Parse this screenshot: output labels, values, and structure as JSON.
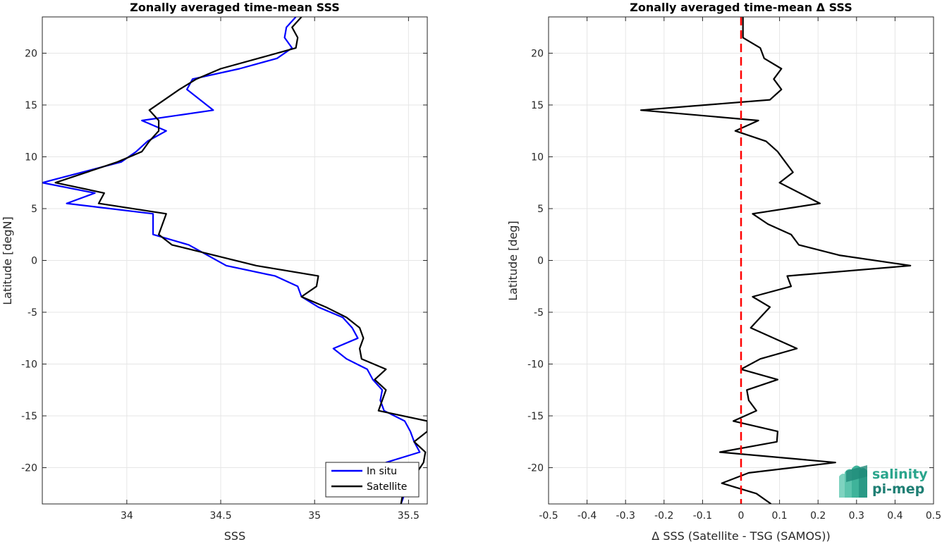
{
  "chart_data": [
    {
      "type": "line",
      "title": "Zonally averaged time-mean SSS",
      "xlabel": "SSS",
      "ylabel": "Latitude [degN]",
      "xlim": [
        33.55,
        35.6
      ],
      "ylim": [
        -23.5,
        23.5
      ],
      "xticks": [
        34,
        34.5,
        35,
        35.5
      ],
      "xtick_labels": [
        "34",
        "34.5",
        "35",
        "35.5"
      ],
      "yticks": [
        -20,
        -15,
        -10,
        -5,
        0,
        5,
        10,
        15,
        20
      ],
      "ytick_labels": [
        "-20",
        "-15",
        "-10",
        "-5",
        "0",
        "5",
        "10",
        "15",
        "20"
      ],
      "grid": true,
      "legend_position": "bottom-right",
      "series": [
        {
          "name": "In situ",
          "color": "#0000ff",
          "x": [
            34.9,
            34.85,
            34.84,
            34.88,
            34.8,
            34.6,
            34.35,
            34.32,
            34.46,
            34.08,
            34.21,
            34.11,
            34.05,
            33.97,
            33.55,
            33.83,
            33.68,
            34.14,
            34.14,
            34.33,
            34.53,
            34.79,
            34.91,
            34.93,
            35.02,
            35.15,
            35.2,
            35.23,
            35.1,
            35.17,
            35.28,
            35.31,
            35.36,
            35.35,
            35.37,
            35.48,
            35.51,
            35.53,
            35.56,
            35.38,
            35.48,
            35.46
          ],
          "y": [
            23.5,
            22.5,
            21.5,
            20.5,
            19.5,
            18.5,
            17.5,
            16.5,
            14.5,
            13.5,
            12.5,
            11.5,
            10.5,
            9.5,
            7.5,
            6.5,
            5.5,
            4.5,
            2.5,
            1.5,
            -0.5,
            -1.5,
            -2.5,
            -3.5,
            -4.5,
            -5.5,
            -6.5,
            -7.5,
            -8.5,
            -9.5,
            -10.5,
            -11.5,
            -12.5,
            -13.5,
            -14.5,
            -15.5,
            -16.5,
            -17.5,
            -18.5,
            -19.5,
            -22.5,
            -23.5
          ]
        },
        {
          "name": "Satellite",
          "color": "#000000",
          "x": [
            34.93,
            34.88,
            34.91,
            34.9,
            34.7,
            34.5,
            34.37,
            34.28,
            34.12,
            34.17,
            34.17,
            34.12,
            34.08,
            33.95,
            33.62,
            33.88,
            33.85,
            34.21,
            34.17,
            34.24,
            34.69,
            35.02,
            35.01,
            34.93,
            35.06,
            35.17,
            35.24,
            35.26,
            35.24,
            35.25,
            35.38,
            35.32,
            35.38,
            35.36,
            35.34,
            35.6,
            35.6,
            35.53,
            35.59,
            35.58,
            35.47,
            35.46
          ],
          "y": [
            23.5,
            22.5,
            21.5,
            20.5,
            19.5,
            18.5,
            17.5,
            16.5,
            14.5,
            13.5,
            12.5,
            11.5,
            10.5,
            9.5,
            7.5,
            6.5,
            5.5,
            4.5,
            2.5,
            1.5,
            -0.5,
            -1.5,
            -2.5,
            -3.5,
            -4.5,
            -5.5,
            -6.5,
            -7.5,
            -8.5,
            -9.5,
            -10.5,
            -11.5,
            -12.5,
            -13.5,
            -14.5,
            -15.5,
            -16.5,
            -17.5,
            -18.5,
            -19.5,
            -22.5,
            -23.5
          ]
        }
      ]
    },
    {
      "type": "line",
      "title": "Zonally averaged time-mean Δ SSS",
      "xlabel": "Δ SSS (Satellite - TSG (SAMOS))",
      "ylabel": "Latitude [deg]",
      "xlim": [
        -0.5,
        0.5
      ],
      "ylim": [
        -23.5,
        23.5
      ],
      "xticks": [
        -0.5,
        -0.4,
        -0.3,
        -0.2,
        -0.1,
        0,
        0.1,
        0.2,
        0.3,
        0.4,
        0.5
      ],
      "xtick_labels": [
        "-0.5",
        "-0.4",
        "-0.3",
        "-0.2",
        "-0.1",
        "0",
        "0.1",
        "0.2",
        "0.3",
        "0.4",
        "0.5"
      ],
      "yticks": [
        -20,
        -15,
        -10,
        -5,
        0,
        5,
        10,
        15,
        20
      ],
      "ytick_labels": [
        "-20",
        "-15",
        "-10",
        "-5",
        "0",
        "5",
        "10",
        "15",
        "20"
      ],
      "grid": true,
      "reference_line": {
        "x": 0,
        "color": "#ff0000",
        "style": "dashed"
      },
      "series": [
        {
          "color": "#000000",
          "x": [
            0.005,
            0.005,
            0.05,
            0.06,
            0.105,
            0.085,
            0.105,
            0.075,
            -0.26,
            0.045,
            -0.015,
            0.065,
            0.095,
            0.115,
            0.135,
            0.1,
            0.205,
            0.03,
            0.07,
            0.13,
            0.15,
            0.255,
            0.44,
            0.12,
            0.13,
            0.03,
            0.075,
            0.05,
            0.025,
            0.145,
            0.05,
            0.0,
            0.095,
            0.015,
            0.02,
            0.04,
            -0.02,
            0.095,
            0.093,
            -0.055,
            0.245,
            0.02,
            -0.05,
            0.04,
            0.078
          ],
          "y": [
            23.5,
            21.5,
            20.5,
            19.5,
            18.5,
            17.5,
            16.5,
            15.5,
            14.5,
            13.5,
            12.5,
            11.5,
            10.5,
            9.5,
            8.5,
            7.5,
            5.5,
            4.5,
            3.5,
            2.5,
            1.5,
            0.5,
            -0.5,
            -1.5,
            -2.5,
            -3.5,
            -4.5,
            -5.5,
            -6.5,
            -8.5,
            -9.5,
            -10.5,
            -11.5,
            -12.5,
            -13.5,
            -14.5,
            -15.5,
            -16.5,
            -17.5,
            -18.5,
            -19.5,
            -20.5,
            -21.5,
            -22.5,
            -23.5
          ]
        }
      ]
    }
  ],
  "legend": {
    "items": [
      "In situ",
      "Satellite"
    ]
  },
  "logo": {
    "line1": "salinity",
    "line2": "pi-mep"
  }
}
